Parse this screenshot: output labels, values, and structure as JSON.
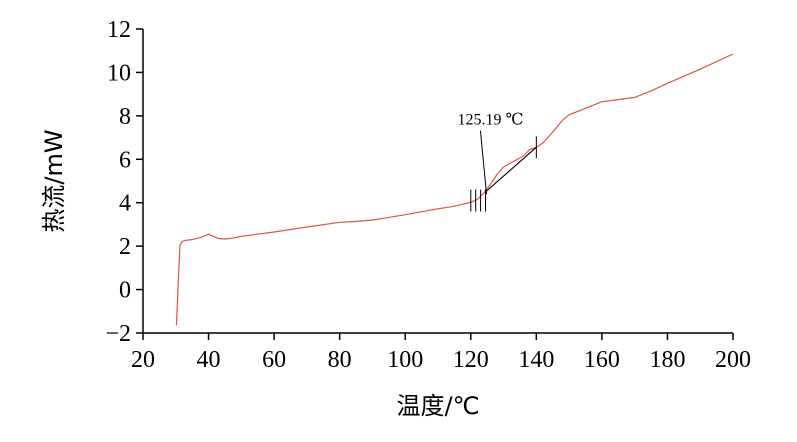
{
  "chart_data": {
    "type": "line",
    "xlabel": "温度/℃",
    "ylabel": "热流/mW",
    "xlim": [
      20,
      200
    ],
    "ylim": [
      -2,
      12
    ],
    "xticks": [
      20,
      40,
      60,
      80,
      100,
      120,
      140,
      160,
      180,
      200
    ],
    "yticks": [
      -2,
      0,
      2,
      4,
      6,
      8,
      10,
      12
    ],
    "grid": false,
    "legend": false,
    "series": [
      {
        "color": "#d9573c",
        "x": [
          30.2,
          30.8,
          31.3,
          32,
          33,
          35,
          37,
          38.5,
          40,
          41.5,
          43,
          45,
          47,
          50,
          55,
          60,
          70,
          80,
          85,
          90,
          100,
          110,
          115,
          118,
          120,
          122,
          124,
          126,
          128,
          130,
          133,
          136,
          138,
          140,
          142,
          145,
          148,
          150,
          155,
          160,
          165,
          170,
          175,
          180,
          190,
          200
        ],
        "y": [
          -1.65,
          0.5,
          2.05,
          2.22,
          2.27,
          2.3,
          2.38,
          2.45,
          2.55,
          2.45,
          2.35,
          2.33,
          2.36,
          2.45,
          2.55,
          2.65,
          2.88,
          3.1,
          3.14,
          3.2,
          3.45,
          3.72,
          3.84,
          3.95,
          4.02,
          4.15,
          4.45,
          4.85,
          5.3,
          5.65,
          5.9,
          6.15,
          6.45,
          6.55,
          6.75,
          7.25,
          7.8,
          8.05,
          8.35,
          8.65,
          8.75,
          8.85,
          9.15,
          9.5,
          10.15,
          10.85
        ]
      },
      {
        "color": "#000000",
        "x": [
          124.5,
          140
        ],
        "y": [
          4.5,
          6.55
        ]
      }
    ],
    "annotations": [
      {
        "text": "125.19 ℃",
        "x": 126,
        "y": 7.5,
        "pointer_to": [
          124.8,
          4.4
        ]
      }
    ],
    "markers_x": [
      120,
      121.5,
      123,
      124.5,
      140
    ]
  }
}
